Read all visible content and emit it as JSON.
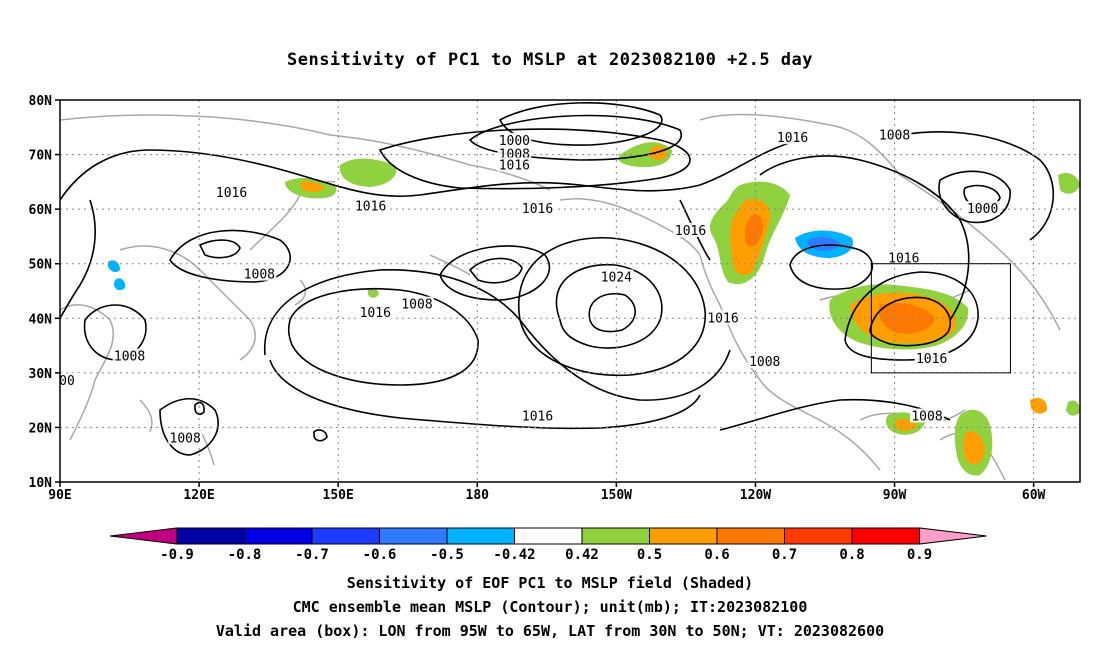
{
  "title": "Sensitivity of PC1 to MSLP at 2023082100 +2.5 day",
  "map": {
    "lat_ticks": [
      "80N",
      "70N",
      "60N",
      "50N",
      "40N",
      "30N",
      "20N",
      "10N"
    ],
    "lon_ticks": [
      "90E",
      "120E",
      "150E",
      "180",
      "150W",
      "120W",
      "90W",
      "60W"
    ],
    "lon_range": [
      "90E",
      "50W"
    ],
    "lat_range": [
      "10N",
      "80N"
    ],
    "grid": "dotted",
    "contour_interval_labels": [
      "1000",
      "1008",
      "1016",
      "1024"
    ],
    "contour_labels": [
      {
        "text": "1000",
        "lon": -172,
        "lat": 72.5
      },
      {
        "text": "1008",
        "lon": -172,
        "lat": 70
      },
      {
        "text": "1016",
        "lon": -172,
        "lat": 68
      },
      {
        "text": "1016",
        "lon": -112,
        "lat": 73
      },
      {
        "text": "1008",
        "lon": -90,
        "lat": 73.5
      },
      {
        "text": "1000",
        "lon": -71,
        "lat": 60
      },
      {
        "text": "1016",
        "lon": 127,
        "lat": 63
      },
      {
        "text": "1016",
        "lon": 157,
        "lat": 60.5
      },
      {
        "text": "1016",
        "lon": -167,
        "lat": 60
      },
      {
        "text": "1016",
        "lon": -134,
        "lat": 56
      },
      {
        "text": "1016",
        "lon": -88,
        "lat": 51
      },
      {
        "text": "1008",
        "lon": 133,
        "lat": 48
      },
      {
        "text": "1008",
        "lon": 167,
        "lat": 42.5
      },
      {
        "text": "1024",
        "lon": -150,
        "lat": 47.5
      },
      {
        "text": "1016",
        "lon": -127,
        "lat": 40
      },
      {
        "text": "1016",
        "lon": 158,
        "lat": 41
      },
      {
        "text": "1008",
        "lon": 105,
        "lat": 33
      },
      {
        "text": "1008",
        "lon": -118,
        "lat": 32
      },
      {
        "text": "1016",
        "lon": -82,
        "lat": 32.5
      },
      {
        "text": "1016",
        "lon": -167,
        "lat": 22
      },
      {
        "text": "1008",
        "lon": -83,
        "lat": 22
      },
      {
        "text": "1008",
        "lon": 117,
        "lat": 18
      },
      {
        "text": "00",
        "lon": 91.5,
        "lat": 28.5
      }
    ],
    "valid_box": {
      "lon_min": -95,
      "lon_max": -65,
      "lat_min": 30,
      "lat_max": 50
    }
  },
  "colorbar": {
    "labels": [
      "-0.9",
      "-0.8",
      "-0.7",
      "-0.6",
      "-0.5",
      "-0.42",
      "0.42",
      "0.5",
      "0.6",
      "0.7",
      "0.8",
      "0.9"
    ],
    "low_end_color": "#c0007f",
    "high_end_color": "#ff9fc8",
    "colors": [
      "#0000a5",
      "#0000e6",
      "#1e3cff",
      "#2f7bff",
      "#00b2ff",
      "#ffffff",
      "#8fd13f",
      "#ff9e00",
      "#ff7800",
      "#ff3c00",
      "#ff0000"
    ]
  },
  "captions": {
    "line1": "Sensitivity of EOF PC1 to MSLP field (Shaded)",
    "line2": "CMC ensemble mean MSLP (Contour); unit(mb); IT:2023082100",
    "line3": "Valid area (box): LON from 95W to 65W, LAT from 30N to 50N; VT: 2023082600"
  },
  "shading": {
    "regions": [
      {
        "lon": 140,
        "lat": 69.5,
        "value": 0.5
      },
      {
        "lon": 126,
        "lat": 62.5,
        "value": 0.55
      },
      {
        "lon": 160,
        "lat": 43,
        "value": 0.45
      },
      {
        "lon": -132,
        "lat": 69,
        "value": 0.6
      },
      {
        "lon": -111,
        "lat": 58,
        "value": 0.62
      },
      {
        "lon": -115,
        "lat": 48,
        "value": 0.58
      },
      {
        "lon": -95,
        "lat": 51,
        "value": -0.5
      },
      {
        "lon": -80,
        "lat": 40,
        "value": 0.72
      },
      {
        "lon": -83,
        "lat": 19,
        "value": 0.55
      },
      {
        "lon": -64,
        "lat": 18,
        "value": 0.6
      },
      {
        "lon": -57,
        "lat": 60,
        "value": 0.48
      }
    ]
  }
}
